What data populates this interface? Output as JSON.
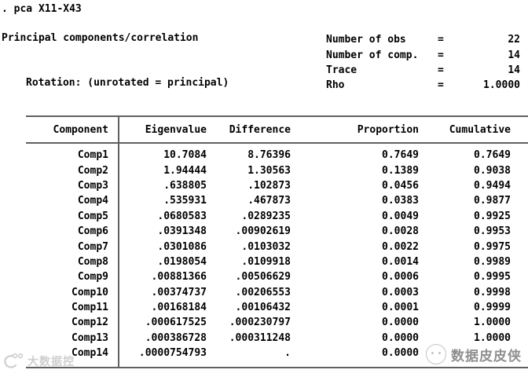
{
  "command": ". pca X11-X43",
  "header": {
    "title": "Principal components/correlation",
    "rotation": "Rotation: (unrotated = principal)",
    "stats": [
      {
        "label": "Number of obs",
        "eq": "=",
        "value": "22"
      },
      {
        "label": "Number of comp.",
        "eq": "=",
        "value": "14"
      },
      {
        "label": "Trace",
        "eq": "=",
        "value": "14"
      },
      {
        "label": "Rho",
        "eq": "=",
        "value": "1.0000"
      }
    ]
  },
  "table": {
    "columns": [
      "Component",
      "Eigenvalue",
      "Difference",
      "Proportion",
      "Cumulative"
    ],
    "rows": [
      {
        "component": "Comp1",
        "eigenvalue": "10.7084",
        "difference": "8.76396",
        "proportion": "0.7649",
        "cumulative": "0.7649"
      },
      {
        "component": "Comp2",
        "eigenvalue": "1.94444",
        "difference": "1.30563",
        "proportion": "0.1389",
        "cumulative": "0.9038"
      },
      {
        "component": "Comp3",
        "eigenvalue": ".638805",
        "difference": ".102873",
        "proportion": "0.0456",
        "cumulative": "0.9494"
      },
      {
        "component": "Comp4",
        "eigenvalue": ".535931",
        "difference": ".467873",
        "proportion": "0.0383",
        "cumulative": "0.9877"
      },
      {
        "component": "Comp5",
        "eigenvalue": ".0680583",
        "difference": ".0289235",
        "proportion": "0.0049",
        "cumulative": "0.9925"
      },
      {
        "component": "Comp6",
        "eigenvalue": ".0391348",
        "difference": ".00902619",
        "proportion": "0.0028",
        "cumulative": "0.9953"
      },
      {
        "component": "Comp7",
        "eigenvalue": ".0301086",
        "difference": ".0103032",
        "proportion": "0.0022",
        "cumulative": "0.9975"
      },
      {
        "component": "Comp8",
        "eigenvalue": ".0198054",
        "difference": ".0109918",
        "proportion": "0.0014",
        "cumulative": "0.9989"
      },
      {
        "component": "Comp9",
        "eigenvalue": ".00881366",
        "difference": ".00506629",
        "proportion": "0.0006",
        "cumulative": "0.9995"
      },
      {
        "component": "Comp10",
        "eigenvalue": ".00374737",
        "difference": ".00206553",
        "proportion": "0.0003",
        "cumulative": "0.9998"
      },
      {
        "component": "Comp11",
        "eigenvalue": ".00168184",
        "difference": ".00106432",
        "proportion": "0.0001",
        "cumulative": "0.9999"
      },
      {
        "component": "Comp12",
        "eigenvalue": ".000617525",
        "difference": ".000230797",
        "proportion": "0.0000",
        "cumulative": "1.0000"
      },
      {
        "component": "Comp13",
        "eigenvalue": ".000386728",
        "difference": ".000311248",
        "proportion": "0.0000",
        "cumulative": "1.0000"
      },
      {
        "component": "Comp14",
        "eigenvalue": ".0000754793",
        "difference": ".",
        "proportion": "0.0000",
        "cumulative": ""
      }
    ]
  },
  "watermarks": {
    "left": {
      "icon": "shrimp-logo-icon",
      "text": "大数据控"
    },
    "right": {
      "icon": "mascot-circle-icon",
      "text": "数据皮皮侠"
    }
  },
  "colors": {
    "background": "#ffffff",
    "text": "#000000",
    "table_line": "#606060",
    "watermark_left": "#c9c9c9",
    "watermark_right": "#8f8f8f"
  }
}
